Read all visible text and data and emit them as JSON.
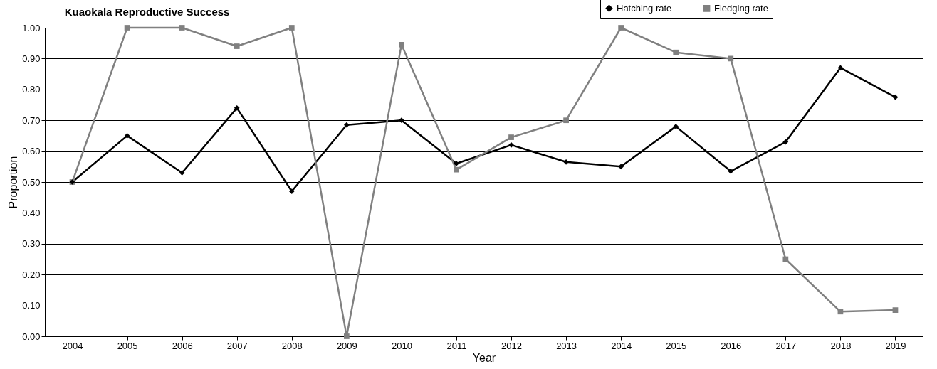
{
  "chart_data": {
    "type": "line",
    "title": "Kuaokala Reproductive Success",
    "xlabel": "Year",
    "ylabel": "Proportion",
    "categories": [
      "2004",
      "2005",
      "2006",
      "2007",
      "2008",
      "2009",
      "2010",
      "2011",
      "2012",
      "2013",
      "2014",
      "2015",
      "2016",
      "2017",
      "2018",
      "2019"
    ],
    "series": [
      {
        "name": "Hatching rate",
        "color": "#000000",
        "marker": "diamond",
        "values": [
          0.5,
          0.65,
          0.53,
          0.74,
          0.47,
          0.685,
          0.7,
          0.56,
          0.62,
          0.565,
          0.55,
          0.68,
          0.535,
          0.63,
          0.87,
          0.775
        ]
      },
      {
        "name": "Fledging rate",
        "color": "#808080",
        "marker": "square",
        "values": [
          0.5,
          1.0,
          1.0,
          0.94,
          1.0,
          0.0,
          0.945,
          0.54,
          0.645,
          0.7,
          1.0,
          0.92,
          0.9,
          0.25,
          0.08,
          0.085
        ]
      }
    ],
    "ylim": [
      0,
      1
    ],
    "yticks": [
      {
        "value": 0,
        "label": "0.00"
      },
      {
        "value": 0.1,
        "label": "0.10"
      },
      {
        "value": 0.2,
        "label": "0.20"
      },
      {
        "value": 0.3,
        "label": "0.30"
      },
      {
        "value": 0.4,
        "label": "0.40"
      },
      {
        "value": 0.5,
        "label": "0.50"
      },
      {
        "value": 0.6,
        "label": "0.60"
      },
      {
        "value": 0.7,
        "label": "0.70"
      },
      {
        "value": 0.8,
        "label": "0.80"
      },
      {
        "value": 0.9,
        "label": "0.90"
      },
      {
        "value": 1.0,
        "label": "1.00"
      }
    ],
    "grid": "y",
    "legend": "top right",
    "line_style": "solid"
  }
}
